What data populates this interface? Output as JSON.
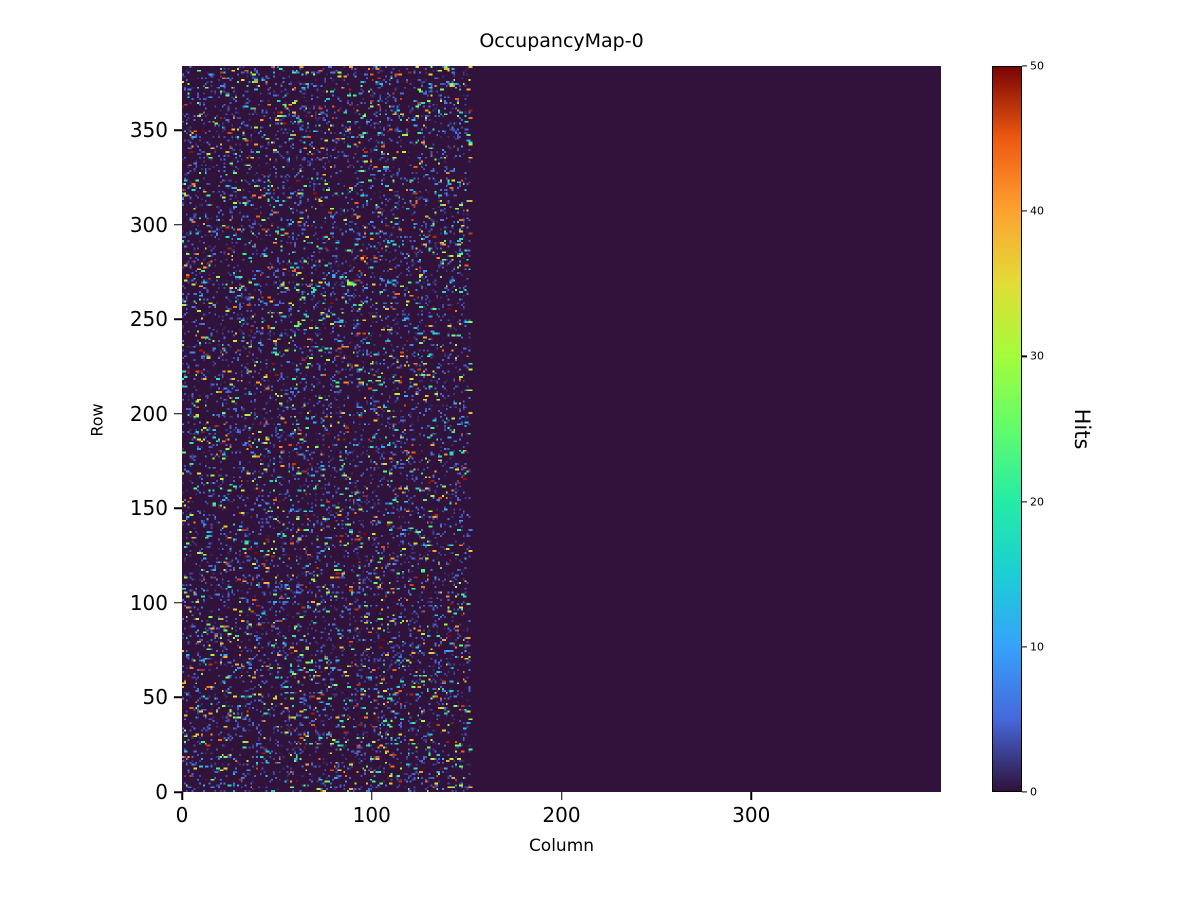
{
  "figure": {
    "background": "#ffffff",
    "text_color": "#000000"
  },
  "chart_data": {
    "type": "heatmap",
    "title": "OccupancyMap-0",
    "xlabel": "Column",
    "ylabel": "Row",
    "xlim": [
      0,
      400
    ],
    "ylim": [
      0,
      384
    ],
    "x_ticks": [
      0,
      100,
      200,
      300
    ],
    "y_ticks": [
      0,
      50,
      100,
      150,
      200,
      250,
      300,
      350
    ],
    "grid": false,
    "legend": "none",
    "dims": {
      "cols": 400,
      "rows": 384
    },
    "colormap": {
      "name": "turbo",
      "stops": [
        {
          "t": 0.0,
          "color": "#30123b"
        },
        {
          "t": 0.1,
          "color": "#4669db"
        },
        {
          "t": 0.2,
          "color": "#36a2fb"
        },
        {
          "t": 0.3,
          "color": "#1bcfd4"
        },
        {
          "t": 0.4,
          "color": "#24eca6"
        },
        {
          "t": 0.5,
          "color": "#61fc6c"
        },
        {
          "t": 0.6,
          "color": "#a4fc3b"
        },
        {
          "t": 0.7,
          "color": "#e1dd37"
        },
        {
          "t": 0.8,
          "color": "#fda331"
        },
        {
          "t": 0.9,
          "color": "#ef5a11"
        },
        {
          "t": 1.0,
          "color": "#7a0403"
        }
      ]
    },
    "colorbar": {
      "label": "Hits",
      "min": 0,
      "max": 50,
      "ticks": [
        0,
        10,
        20,
        30,
        40,
        50
      ],
      "position": "right"
    },
    "occupancy": {
      "background_value": 0,
      "active_region": {
        "col_min": 0,
        "col_max": 152,
        "row_min": 0,
        "row_max": 384
      },
      "bright_hits": {
        "density": 0.045,
        "value_min": 5,
        "value_max": 50
      },
      "faint_hits": {
        "density": 0.1,
        "value_min": 1,
        "value_max": 6
      },
      "seed": 20240613
    }
  }
}
